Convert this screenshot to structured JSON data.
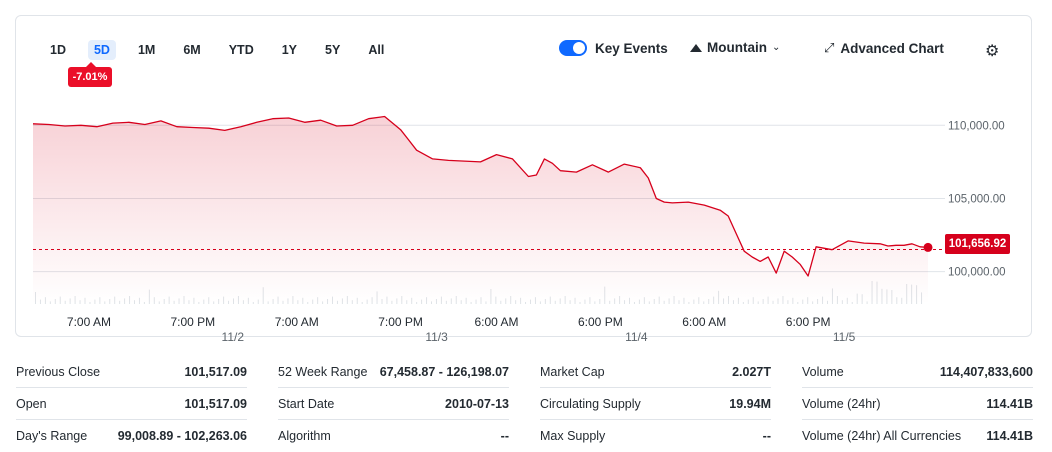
{
  "ranges": [
    "1D",
    "5D",
    "1M",
    "6M",
    "YTD",
    "1Y",
    "5Y",
    "All"
  ],
  "active_range": "5D",
  "change_badge": "-7.01%",
  "controls": {
    "key_events_label": "Key Events",
    "chart_type_label": "Mountain",
    "advanced_chart_label": "Advanced Chart"
  },
  "colors": {
    "line": "#d6001c",
    "accent": "#0f69ff",
    "badge": "#eb0f29"
  },
  "current_price_label": "101,656.92",
  "chart_data": {
    "type": "area",
    "y_ticks": [
      100000,
      105000,
      110000
    ],
    "y_tick_labels": [
      "100,000.00",
      "105,000.00",
      "110,000.00"
    ],
    "ylim": [
      98200,
      112000
    ],
    "x_time_labels": [
      "7:00 AM",
      "7:00 PM",
      "7:00 AM",
      "7:00 PM",
      "6:00 AM",
      "6:00 PM",
      "6:00 AM",
      "6:00 PM"
    ],
    "x_date_labels": [
      "11/2",
      "11/3",
      "11/4",
      "11/5"
    ],
    "previous_close": 101517.09,
    "last_price": 101656.92,
    "x_range": [
      0,
      112
    ],
    "time_tick_x": [
      7,
      20,
      33,
      46,
      58,
      71,
      84,
      97
    ],
    "date_tick_x": [
      25,
      50.5,
      75.5,
      101.5
    ],
    "series": [
      {
        "x": [
          0,
          2,
          4,
          6,
          8,
          10,
          12,
          14,
          16,
          18,
          20,
          22,
          24,
          26,
          28,
          30,
          32,
          34,
          36,
          38,
          40,
          42,
          44,
          46,
          47,
          48,
          49,
          50,
          52,
          54,
          56,
          58,
          60,
          62,
          63,
          64,
          65,
          66,
          68,
          70,
          72,
          74,
          76,
          77,
          78,
          79,
          80,
          82,
          84,
          86,
          87,
          88,
          89,
          90,
          91,
          92,
          93,
          94,
          95,
          96,
          97,
          98,
          100,
          102,
          104,
          106,
          107,
          108,
          109,
          110,
          111,
          112
        ],
        "y": [
          110100,
          110050,
          109950,
          110000,
          109900,
          110150,
          110200,
          110050,
          110300,
          109900,
          109850,
          109800,
          109650,
          109900,
          110200,
          110450,
          110500,
          110200,
          110350,
          109950,
          110000,
          110450,
          110600,
          109700,
          109000,
          108300,
          108000,
          107700,
          107600,
          107550,
          107500,
          108000,
          107700,
          106500,
          106600,
          107700,
          107400,
          106900,
          106800,
          107300,
          106800,
          107350,
          107100,
          106400,
          105000,
          104750,
          104700,
          104750,
          104550,
          104200,
          103800,
          102600,
          101400,
          101000,
          100700,
          101000,
          99900,
          101400,
          101000,
          100500,
          99700,
          101700,
          101500,
          102100,
          101950,
          101900,
          101750,
          101800,
          101800,
          101900,
          101700,
          101656.92
        ]
      }
    ]
  },
  "stats": [
    [
      {
        "label": "Previous Close",
        "value": "101,517.09"
      },
      {
        "label": "Open",
        "value": "101,517.09"
      },
      {
        "label": "Day's Range",
        "value": "99,008.89 - 102,263.06"
      }
    ],
    [
      {
        "label": "52 Week Range",
        "value": "67,458.87 - 126,198.07"
      },
      {
        "label": "Start Date",
        "value": "2010-07-13"
      },
      {
        "label": "Algorithm",
        "value": "--"
      }
    ],
    [
      {
        "label": "Market Cap",
        "value": "2.027T"
      },
      {
        "label": "Circulating Supply",
        "value": "19.94M"
      },
      {
        "label": "Max Supply",
        "value": "--"
      }
    ],
    [
      {
        "label": "Volume",
        "value": "114,407,833,600"
      },
      {
        "label": "Volume (24hr)",
        "value": "114.41B"
      },
      {
        "label": "Volume (24hr) All Currencies",
        "value": "114.41B"
      }
    ]
  ]
}
